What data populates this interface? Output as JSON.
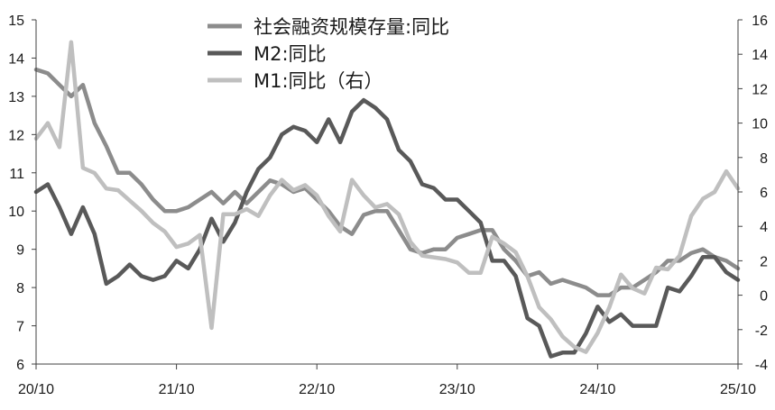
{
  "chart_data": {
    "type": "line",
    "x": [
      "2020-10",
      "2020-11",
      "2020-12",
      "2021-01",
      "2021-02",
      "2021-03",
      "2021-04",
      "2021-05",
      "2021-06",
      "2021-07",
      "2021-08",
      "2021-09",
      "2021-10",
      "2021-11",
      "2021-12",
      "2022-01",
      "2022-02",
      "2022-03",
      "2022-04",
      "2022-05",
      "2022-06",
      "2022-07",
      "2022-08",
      "2022-09",
      "2022-10",
      "2022-11",
      "2022-12",
      "2023-01",
      "2023-02",
      "2023-03",
      "2023-04",
      "2023-05",
      "2023-06",
      "2023-07",
      "2023-08",
      "2023-09",
      "2023-10",
      "2023-11",
      "2023-12",
      "2024-01",
      "2024-02",
      "2024-03",
      "2024-04",
      "2024-05",
      "2024-06",
      "2024-07",
      "2024-08",
      "2024-09",
      "2024-10",
      "2024-11",
      "2024-12",
      "2025-01",
      "2025-02",
      "2025-03",
      "2025-04",
      "2025-05",
      "2025-06",
      "2025-07",
      "2025-08",
      "2025-09",
      "2025-10"
    ],
    "x_ticks": [
      "20/10",
      "21/10",
      "22/10",
      "23/10",
      "24/10",
      "25/10"
    ],
    "x_tick_positions": [
      "2020-10",
      "2021-10",
      "2022-10",
      "2023-10",
      "2024-10",
      "2025-10"
    ],
    "y_left": {
      "range": [
        6,
        15
      ],
      "ticks": [
        "6",
        "7",
        "8",
        "9",
        "10",
        "11",
        "12",
        "13",
        "14",
        "15"
      ]
    },
    "y_right": {
      "range": [
        -4,
        16
      ],
      "ticks": [
        "-4",
        "-2",
        "0",
        "2",
        "4",
        "6",
        "8",
        "10",
        "12",
        "14",
        "16"
      ]
    },
    "series": [
      {
        "name": "社会融资规模存量:同比",
        "axis": "left",
        "color": "#8c8c8c",
        "values": [
          13.7,
          13.6,
          13.3,
          13.0,
          13.3,
          12.3,
          11.7,
          11.0,
          11.0,
          10.7,
          10.3,
          10.0,
          10.0,
          10.1,
          10.3,
          10.5,
          10.2,
          10.5,
          10.2,
          10.5,
          10.8,
          10.7,
          10.5,
          10.6,
          10.3,
          10.0,
          9.6,
          9.4,
          9.9,
          10.0,
          10.0,
          9.5,
          9.0,
          8.9,
          9.0,
          9.0,
          9.3,
          9.4,
          9.5,
          9.5,
          9.0,
          8.7,
          8.3,
          8.4,
          8.1,
          8.2,
          8.1,
          8.0,
          7.8,
          7.8,
          8.0,
          8.0,
          8.2,
          8.4,
          8.7,
          8.7,
          8.9,
          9.0,
          8.8,
          8.7,
          8.5
        ]
      },
      {
        "name": "M2:同比",
        "axis": "left",
        "color": "#595959",
        "values": [
          10.5,
          10.7,
          10.1,
          9.4,
          10.1,
          9.4,
          8.1,
          8.3,
          8.6,
          8.3,
          8.2,
          8.3,
          8.7,
          8.5,
          9.0,
          9.8,
          9.2,
          9.7,
          10.5,
          11.1,
          11.4,
          12.0,
          12.2,
          12.1,
          11.8,
          12.4,
          11.8,
          12.6,
          12.9,
          12.7,
          12.4,
          11.6,
          11.3,
          10.7,
          10.6,
          10.3,
          10.3,
          10.0,
          9.7,
          8.7,
          8.7,
          8.3,
          7.2,
          7.0,
          6.2,
          6.3,
          6.3,
          6.8,
          7.5,
          7.1,
          7.3,
          7.0,
          7.0,
          7.0,
          8.0,
          7.9,
          8.3,
          8.8,
          8.8,
          8.4,
          8.2
        ]
      },
      {
        "name": "M1:同比（右）",
        "axis": "right",
        "color": "#bfbfbf",
        "values": [
          9.1,
          10.0,
          8.6,
          14.7,
          7.4,
          7.1,
          6.2,
          6.1,
          5.5,
          4.9,
          4.2,
          3.7,
          2.8,
          3.0,
          3.5,
          -1.9,
          4.7,
          4.7,
          5.0,
          4.6,
          5.8,
          6.7,
          6.1,
          6.4,
          5.8,
          4.6,
          3.7,
          6.7,
          5.8,
          5.1,
          5.3,
          4.7,
          3.1,
          2.3,
          2.2,
          2.1,
          1.9,
          1.3,
          1.3,
          3.4,
          3.0,
          2.5,
          1.1,
          -0.7,
          -1.4,
          -2.4,
          -3.0,
          -3.3,
          -2.2,
          -0.7,
          1.2,
          0.4,
          0.1,
          1.6,
          1.5,
          2.3,
          4.6,
          5.6,
          6.0,
          7.2,
          6.2
        ]
      }
    ],
    "legend": {
      "position": "top-center",
      "entries": [
        "社会融资规模存量:同比",
        "M2:同比",
        "M1:同比（右）"
      ]
    },
    "grid": false
  }
}
